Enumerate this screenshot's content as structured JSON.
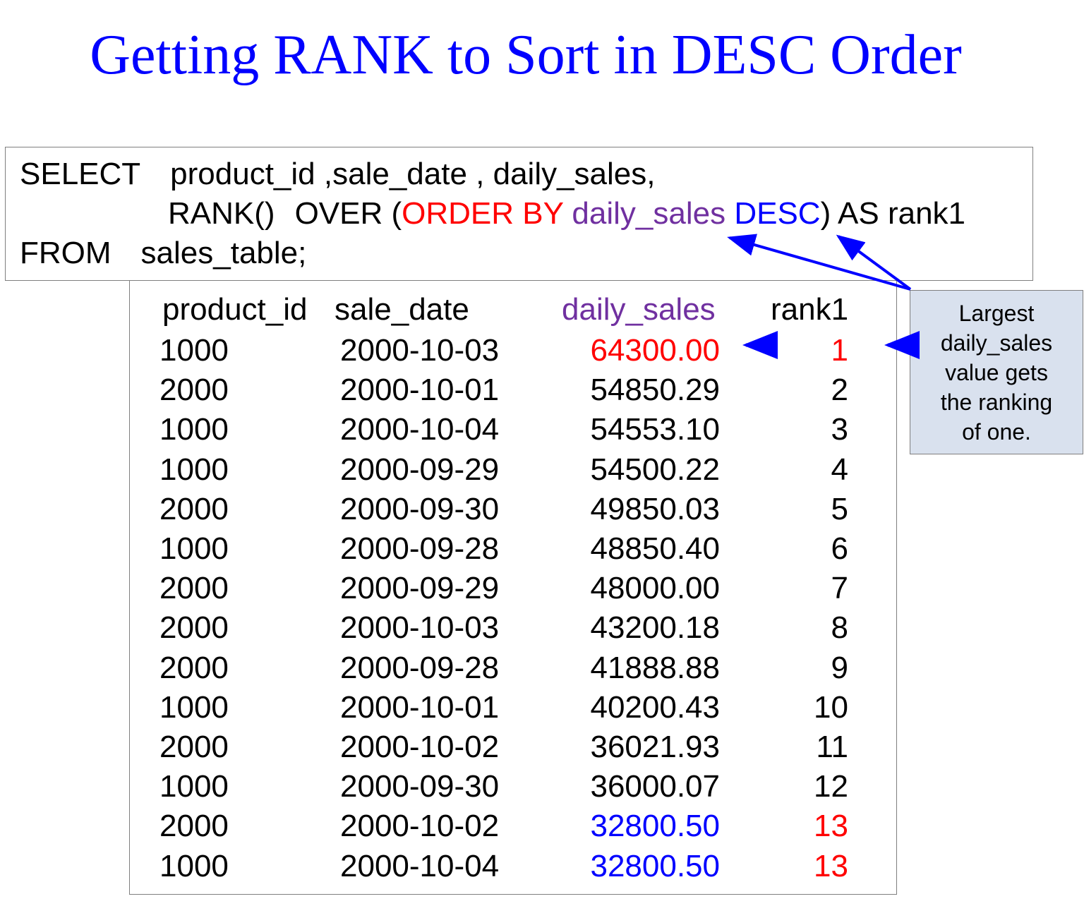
{
  "title": "Getting RANK to Sort in DESC Order",
  "sql": {
    "line1_select": "SELECT",
    "line1_cols": "product_id ,sale_date , daily_sales,",
    "line2_rank": "RANK()",
    "line2_over": "OVER (",
    "line2_order_by": "ORDER BY",
    "line2_col": "daily_sales",
    "line2_desc": "DESC",
    "line2_alias": ") AS rank1",
    "line3_from": "FROM",
    "line3_table": "sales_table;"
  },
  "table": {
    "headers": [
      "product_id",
      "sale_date",
      "daily_sales",
      "rank1"
    ],
    "rows": [
      {
        "product_id": "1000",
        "sale_date": "2000-10-03",
        "daily_sales": "64300.00",
        "rank1": "1"
      },
      {
        "product_id": "2000",
        "sale_date": "2000-10-01",
        "daily_sales": "54850.29",
        "rank1": "2"
      },
      {
        "product_id": "1000",
        "sale_date": "2000-10-04",
        "daily_sales": "54553.10",
        "rank1": "3"
      },
      {
        "product_id": "1000",
        "sale_date": "2000-09-29",
        "daily_sales": "54500.22",
        "rank1": "4"
      },
      {
        "product_id": "2000",
        "sale_date": "2000-09-30",
        "daily_sales": "49850.03",
        "rank1": "5"
      },
      {
        "product_id": "1000",
        "sale_date": "2000-09-28",
        "daily_sales": "48850.40",
        "rank1": "6"
      },
      {
        "product_id": "2000",
        "sale_date": "2000-09-29",
        "daily_sales": "48000.00",
        "rank1": "7"
      },
      {
        "product_id": "2000",
        "sale_date": "2000-10-03",
        "daily_sales": "43200.18",
        "rank1": "8"
      },
      {
        "product_id": "2000",
        "sale_date": "2000-09-28",
        "daily_sales": "41888.88",
        "rank1": "9"
      },
      {
        "product_id": "1000",
        "sale_date": "2000-10-01",
        "daily_sales": "40200.43",
        "rank1": "10"
      },
      {
        "product_id": "2000",
        "sale_date": "2000-10-02",
        "daily_sales": "36021.93",
        "rank1": "11"
      },
      {
        "product_id": "1000",
        "sale_date": "2000-09-30",
        "daily_sales": "36000.07",
        "rank1": "12"
      },
      {
        "product_id": "2000",
        "sale_date": "2000-10-02",
        "daily_sales": "32800.50",
        "rank1": "13"
      },
      {
        "product_id": "1000",
        "sale_date": "2000-10-04",
        "daily_sales": "32800.50",
        "rank1": "13"
      }
    ]
  },
  "callout": {
    "lines": [
      "Largest",
      "daily_sales",
      "value gets",
      "the ranking",
      "of one."
    ]
  },
  "colors": {
    "title": "#0000ff",
    "keyword_red": "#ff0000",
    "column_purple": "#7030a0",
    "desc_blue": "#0000ff",
    "callout_bg": "#d9e1ee",
    "arrow": "#0000ff"
  },
  "highlights": {
    "top_row_red": true,
    "tied_rows_sales_blue": [
      12,
      13
    ],
    "tied_rows_rank_red": [
      12,
      13
    ]
  },
  "icons": [
    "arrow-icon"
  ]
}
